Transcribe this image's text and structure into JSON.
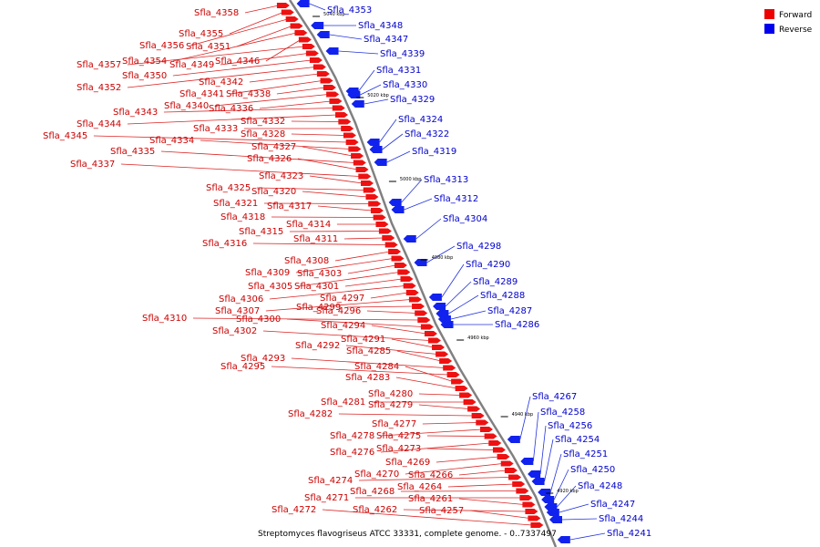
{
  "caption": "Streptomyces flavogriseus ATCC 33331, complete genome. - 0..7337497",
  "legend": {
    "placement": "top-right",
    "items": [
      {
        "label": "Forward",
        "color": "#ee0000"
      },
      {
        "label": "Reverse",
        "color": "#0000ee"
      }
    ]
  },
  "colors": {
    "forward": "#ee1111",
    "reverse": "#1122ee",
    "backbone": "#808080"
  },
  "ticks": [
    "5040 kbp",
    "5020 kbp",
    "5000 kbp",
    "4980 kbp",
    "4960 kbp",
    "4940 kbp",
    "4920 kbp"
  ],
  "reverse_genes": [
    "Sfla_4353",
    "Sfla_4348",
    "Sfla_4347",
    "Sfla_4339",
    "Sfla_4331",
    "Sfla_4330",
    "Sfla_4329",
    "Sfla_4324",
    "Sfla_4322",
    "Sfla_4319",
    "Sfla_4313",
    "Sfla_4312",
    "Sfla_4304",
    "Sfla_4298",
    "Sfla_4290",
    "Sfla_4289",
    "Sfla_4288",
    "Sfla_4287",
    "Sfla_4286",
    "Sfla_4267",
    "Sfla_4258",
    "Sfla_4256",
    "Sfla_4254",
    "Sfla_4251",
    "Sfla_4250",
    "Sfla_4248",
    "Sfla_4247",
    "Sfla_4244",
    "Sfla_4241"
  ],
  "forward_genes": [
    "Sfla_4358",
    "Sfla_4355",
    "Sfla_4356",
    "Sfla_4351",
    "Sfla_4354",
    "Sfla_4346",
    "Sfla_4357",
    "Sfla_4349",
    "Sfla_4350",
    "Sfla_4352",
    "Sfla_4342",
    "Sfla_4341",
    "Sfla_4338",
    "Sfla_4340",
    "Sfla_4336",
    "Sfla_4343",
    "Sfla_4344",
    "Sfla_4332",
    "Sfla_4333",
    "Sfla_4328",
    "Sfla_4345",
    "Sfla_4334",
    "Sfla_4327",
    "Sfla_4335",
    "Sfla_4326",
    "Sfla_4337",
    "Sfla_4323",
    "Sfla_4325",
    "Sfla_4320",
    "Sfla_4321",
    "Sfla_4317",
    "Sfla_4318",
    "Sfla_4314",
    "Sfla_4315",
    "Sfla_4311",
    "Sfla_4316",
    "Sfla_4308",
    "Sfla_4309",
    "Sfla_4303",
    "Sfla_4305",
    "Sfla_4301",
    "Sfla_4306",
    "Sfla_4297",
    "Sfla_4307",
    "Sfla_4299",
    "Sfla_4296",
    "Sfla_4310",
    "Sfla_4300",
    "Sfla_4294",
    "Sfla_4302",
    "Sfla_4291",
    "Sfla_4292",
    "Sfla_4285",
    "Sfla_4293",
    "Sfla_4295",
    "Sfla_4284",
    "Sfla_4283",
    "Sfla_4280",
    "Sfla_4281",
    "Sfla_4279",
    "Sfla_4282",
    "Sfla_4277",
    "Sfla_4278",
    "Sfla_4275",
    "Sfla_4276",
    "Sfla_4273",
    "Sfla_4269",
    "Sfla_4270",
    "Sfla_4266",
    "Sfla_4274",
    "Sfla_4264",
    "Sfla_4268",
    "Sfla_4271",
    "Sfla_4261",
    "Sfla_4262",
    "Sfla_4257",
    "Sfla_4272"
  ]
}
